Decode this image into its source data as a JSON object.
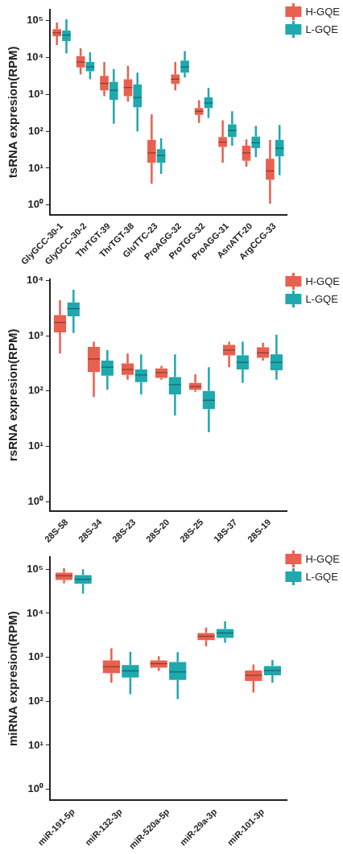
{
  "chart_data": [
    {
      "type": "box",
      "ylabel": "tsRNA expresion(RPM)",
      "categories": [
        "GlyGCC-30-1",
        "GlyGCC-30-2",
        "ThrTGT-39",
        "ThrTGT-38",
        "GluTTC-23",
        "ProAGG-32",
        "ProTGG-32",
        "ProAGG-31",
        "AsnATT-20",
        "ArgCCG-33"
      ],
      "log": true,
      "ylim": [
        0.55,
        200000
      ],
      "yticks": [
        {
          "value": 1,
          "label": "10⁰"
        },
        {
          "value": 10,
          "label": "10¹"
        },
        {
          "value": 100,
          "label": "10²"
        },
        {
          "value": 1000,
          "label": "10³"
        },
        {
          "value": 10000,
          "label": "10⁴"
        },
        {
          "value": 100000,
          "label": "10⁵"
        }
      ],
      "grid": false,
      "legend": "top right",
      "series": [
        {
          "name": "H-GQE",
          "color": "#e8604f",
          "boxes": [
            {
              "low": 22000,
              "q1": 38000,
              "median": 47000,
              "q3": 59000,
              "high": 90000
            },
            {
              "low": 3500,
              "q1": 5400,
              "median": 7600,
              "q3": 11000,
              "high": 18000
            },
            {
              "low": 900,
              "q1": 1300,
              "median": 2000,
              "q3": 3200,
              "high": 7600
            },
            {
              "low": 640,
              "q1": 900,
              "median": 1550,
              "q3": 2600,
              "high": 6000
            },
            {
              "low": 3.8,
              "q1": 14,
              "median": 26,
              "q3": 59,
              "high": 290
            },
            {
              "low": 1300,
              "q1": 1950,
              "median": 2600,
              "q3": 3500,
              "high": 7600
            },
            {
              "low": 170,
              "q1": 280,
              "median": 350,
              "q3": 430,
              "high": 700
            },
            {
              "low": 14,
              "q1": 38,
              "median": 51,
              "q3": 70,
              "high": 200
            },
            {
              "low": 11,
              "q1": 16,
              "median": 26,
              "q3": 41,
              "high": 60
            },
            {
              "low": 1.1,
              "q1": 4.9,
              "median": 8.4,
              "q3": 18,
              "high": 59
            }
          ]
        },
        {
          "name": "L-GQE",
          "color": "#1fa8ad",
          "boxes": [
            {
              "low": 13000,
              "q1": 28000,
              "median": 41000,
              "q3": 54000,
              "high": 110000
            },
            {
              "low": 2600,
              "q1": 4300,
              "median": 5600,
              "q3": 7600,
              "high": 14000
            },
            {
              "low": 160,
              "q1": 720,
              "median": 1300,
              "q3": 2200,
              "high": 4900
            },
            {
              "low": 100,
              "q1": 450,
              "median": 830,
              "q3": 1860,
              "high": 3900
            },
            {
              "low": 7,
              "q1": 14,
              "median": 22,
              "q3": 33,
              "high": 65
            },
            {
              "low": 2900,
              "q1": 3900,
              "median": 5600,
              "q3": 8300,
              "high": 15000
            },
            {
              "low": 230,
              "q1": 430,
              "median": 590,
              "q3": 830,
              "high": 1500
            },
            {
              "low": 41,
              "q1": 70,
              "median": 105,
              "q3": 155,
              "high": 350
            },
            {
              "low": 20,
              "q1": 35,
              "median": 49,
              "q3": 72,
              "high": 140
            },
            {
              "low": 6.4,
              "q1": 21,
              "median": 35,
              "q3": 59,
              "high": 150
            }
          ]
        }
      ]
    },
    {
      "type": "box",
      "ylabel": "rsRNA expresion(RPM)",
      "categories": [
        "28S-58",
        "28S-34",
        "28S-23",
        "28S-20",
        "28S-25",
        "18S-37",
        "28S-19"
      ],
      "log": true,
      "ylim": [
        0.68,
        10500
      ],
      "yticks": [
        {
          "value": 1,
          "label": "10⁰"
        },
        {
          "value": 10,
          "label": "10¹"
        },
        {
          "value": 100,
          "label": "10²"
        },
        {
          "value": 1000,
          "label": "10³"
        },
        {
          "value": 10000,
          "label": "10⁴"
        }
      ],
      "grid": false,
      "legend": "top right",
      "series": [
        {
          "name": "H-GQE",
          "color": "#e8604f",
          "boxes": [
            {
              "low": 475,
              "q1": 1150,
              "median": 1740,
              "q3": 2370,
              "high": 4400
            },
            {
              "low": 78,
              "q1": 220,
              "median": 380,
              "q3": 630,
              "high": 780
            },
            {
              "low": 160,
              "q1": 195,
              "median": 245,
              "q3": 316,
              "high": 475
            },
            {
              "low": 160,
              "q1": 173,
              "median": 215,
              "q3": 255,
              "high": 285
            },
            {
              "low": 97,
              "q1": 105,
              "median": 120,
              "q3": 140,
              "high": 200
            },
            {
              "low": 270,
              "q1": 440,
              "median": 550,
              "q3": 680,
              "high": 780
            },
            {
              "low": 355,
              "q1": 400,
              "median": 490,
              "q3": 615,
              "high": 750
            }
          ]
        },
        {
          "name": "L-GQE",
          "color": "#1fa8ad",
          "boxes": [
            {
              "low": 1120,
              "q1": 2240,
              "median": 3090,
              "q3": 4000,
              "high": 6800
            },
            {
              "low": 105,
              "q1": 190,
              "median": 270,
              "q3": 355,
              "high": 550
            },
            {
              "low": 87,
              "q1": 145,
              "median": 195,
              "q3": 245,
              "high": 460
            },
            {
              "low": 36,
              "q1": 87,
              "median": 130,
              "q3": 178,
              "high": 460
            },
            {
              "low": 18,
              "q1": 47,
              "median": 68,
              "q3": 100,
              "high": 270
            },
            {
              "low": 140,
              "q1": 245,
              "median": 330,
              "q3": 440,
              "high": 780
            },
            {
              "low": 160,
              "q1": 237,
              "median": 330,
              "q3": 460,
              "high": 1050
            }
          ]
        }
      ]
    },
    {
      "type": "box",
      "ylabel": "miRNA expresion(RPM)",
      "categories": [
        "miR-191-5p",
        "miR-132-3p",
        "miR-520a-5p",
        "miR-29a-3p",
        "miR-101-3p"
      ],
      "log": true,
      "ylim": [
        0.56,
        190000
      ],
      "yticks": [
        {
          "value": 1,
          "label": "10⁰"
        },
        {
          "value": 10,
          "label": "10¹"
        },
        {
          "value": 100,
          "label": "10²"
        },
        {
          "value": 1000,
          "label": "10³"
        },
        {
          "value": 10000,
          "label": "10⁴"
        },
        {
          "value": 100000,
          "label": "10⁵"
        }
      ],
      "grid": false,
      "legend": "top right",
      "series": [
        {
          "name": "H-GQE",
          "color": "#e8604f",
          "boxes": [
            {
              "low": 48000,
              "q1": 57000,
              "median": 71000,
              "q3": 84000,
              "high": 105000
            },
            {
              "low": 265,
              "q1": 435,
              "median": 610,
              "q3": 850,
              "high": 1600
            },
            {
              "low": 490,
              "q1": 580,
              "median": 715,
              "q3": 850,
              "high": 1060
            },
            {
              "low": 1780,
              "q1": 2450,
              "median": 3000,
              "q3": 3560,
              "high": 4700
            },
            {
              "low": 158,
              "q1": 290,
              "median": 390,
              "q3": 500,
              "high": 690
            }
          ]
        },
        {
          "name": "L-GQE",
          "color": "#1fa8ad",
          "boxes": [
            {
              "low": 28000,
              "q1": 47000,
              "median": 59000,
              "q3": 74000,
              "high": 100000
            },
            {
              "low": 145,
              "q1": 345,
              "median": 490,
              "q3": 665,
              "high": 1340
            },
            {
              "low": 112,
              "q1": 305,
              "median": 465,
              "q3": 780,
              "high": 1300
            },
            {
              "low": 2140,
              "q1": 2760,
              "median": 3560,
              "q3": 4400,
              "high": 6600
            },
            {
              "low": 265,
              "q1": 390,
              "median": 500,
              "q3": 630,
              "high": 870
            }
          ]
        }
      ]
    }
  ]
}
